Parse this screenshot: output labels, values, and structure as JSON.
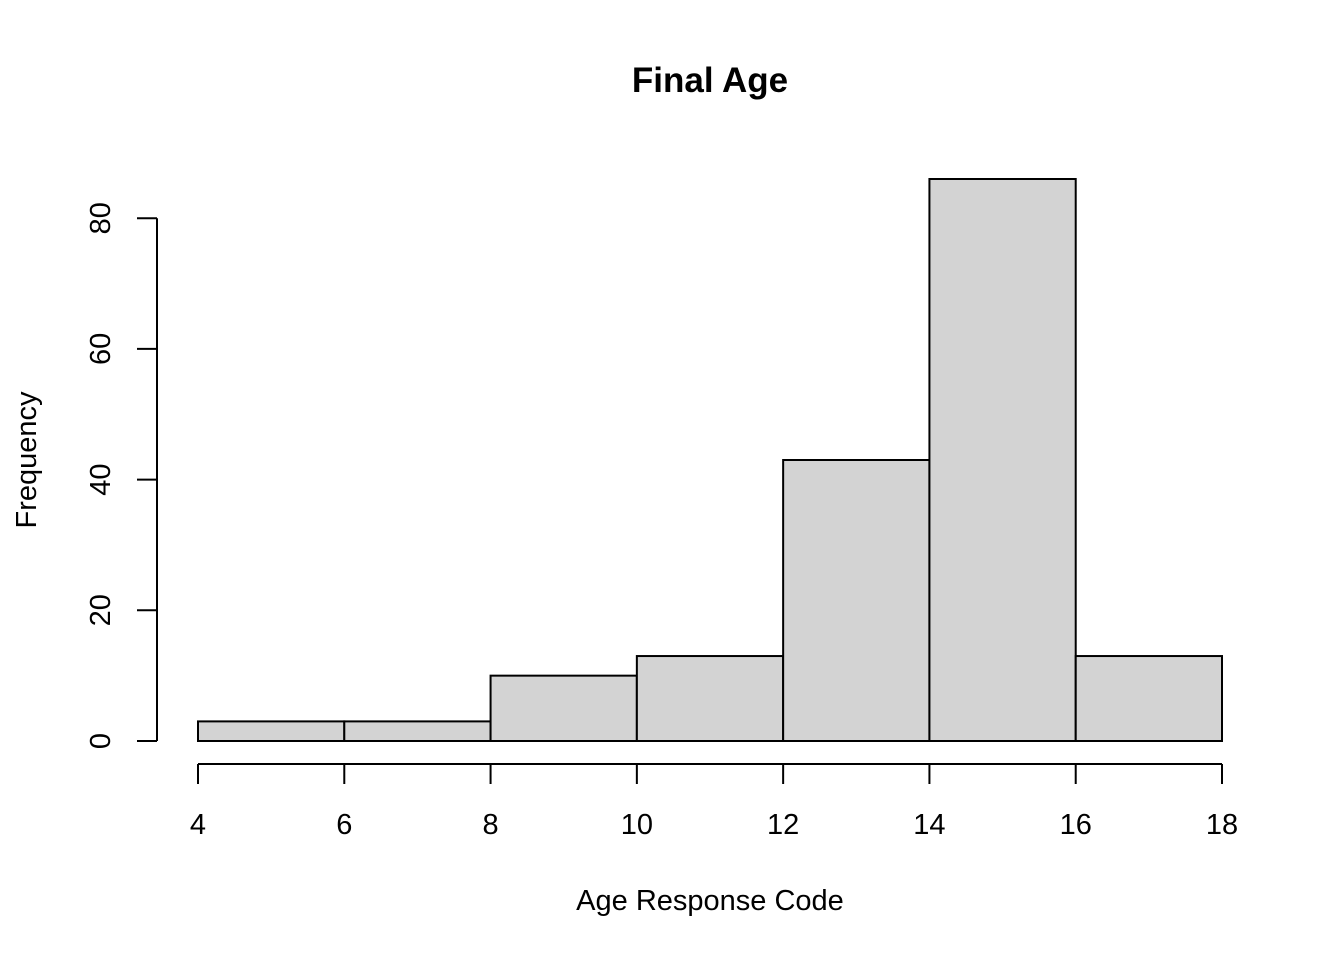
{
  "chart_data": {
    "type": "bar",
    "subtype": "histogram",
    "title": "Final Age",
    "xlabel": "Age Response Code",
    "ylabel": "Frequency",
    "bins": [
      {
        "start": 4,
        "end": 6,
        "count": 3
      },
      {
        "start": 6,
        "end": 8,
        "count": 3
      },
      {
        "start": 8,
        "end": 10,
        "count": 10
      },
      {
        "start": 10,
        "end": 12,
        "count": 13
      },
      {
        "start": 12,
        "end": 14,
        "count": 43
      },
      {
        "start": 14,
        "end": 16,
        "count": 86
      },
      {
        "start": 16,
        "end": 18,
        "count": 13
      }
    ],
    "xticks": [
      4,
      6,
      8,
      10,
      12,
      14,
      16,
      18
    ],
    "yticks": [
      0,
      20,
      40,
      60,
      80
    ],
    "xlim": [
      4,
      18
    ],
    "ylim": [
      0,
      86
    ],
    "grid": false,
    "legend": "none",
    "bar_color": "#d3d3d3",
    "edge_color": "#000000"
  }
}
